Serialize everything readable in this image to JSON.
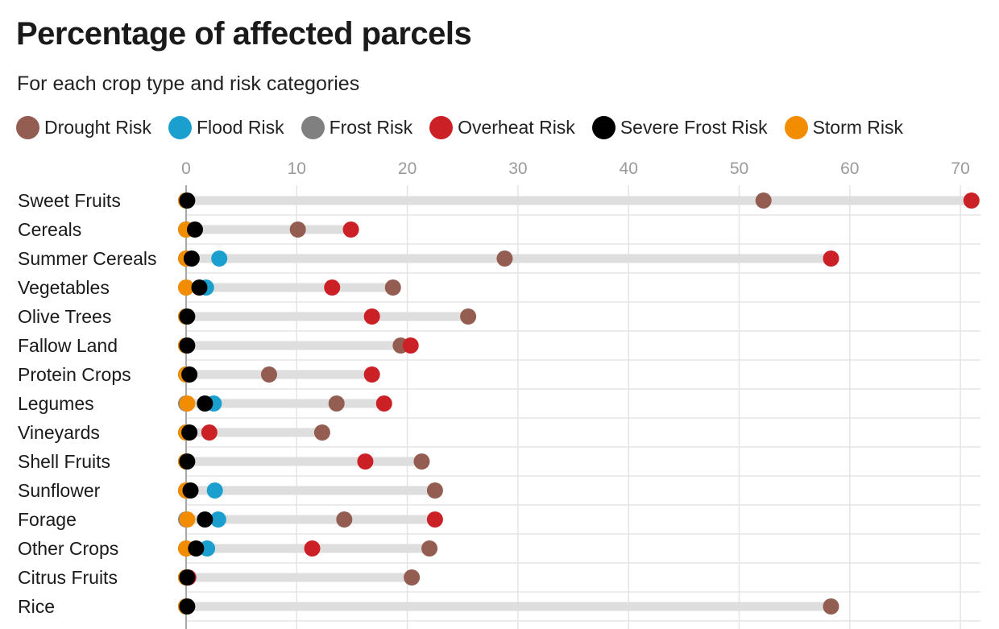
{
  "chart_data": {
    "type": "scatter",
    "subtype": "dot-plot",
    "title": "Percentage of affected parcels",
    "subtitle": "For each crop type and risk categories",
    "xlim": [
      0,
      71
    ],
    "x_ticks": [
      0,
      10,
      20,
      30,
      40,
      50,
      60,
      70
    ],
    "legend_position": "top",
    "grid": true,
    "categories": [
      "Sweet Fruits",
      "Cereals",
      "Summer Cereals",
      "Vegetables",
      "Olive Trees",
      "Fallow Land",
      "Protein Crops",
      "Legumes",
      "Vineyards",
      "Shell Fruits",
      "Sunflower",
      "Forage",
      "Other Crops",
      "Citrus Fruits",
      "Rice"
    ],
    "series": [
      {
        "name": "Drought Risk",
        "color": "#935d52",
        "values": [
          52.2,
          10.1,
          28.8,
          18.7,
          25.5,
          19.4,
          7.5,
          13.6,
          12.3,
          21.3,
          22.5,
          14.3,
          22.0,
          20.4,
          58.3
        ]
      },
      {
        "name": "Flood Risk",
        "color": "#1b9fcf",
        "values": [
          0.0,
          0.0,
          3.0,
          1.8,
          0.0,
          0.0,
          0.0,
          2.5,
          0.0,
          0.0,
          2.6,
          2.9,
          1.9,
          0.0,
          0.0
        ]
      },
      {
        "name": "Frost Risk",
        "color": "#808080",
        "values": [
          0.0,
          0.0,
          0.0,
          0.0,
          0.0,
          0.0,
          0.0,
          0.0,
          0.0,
          0.0,
          0.0,
          0.0,
          0.0,
          0.0,
          0.0
        ]
      },
      {
        "name": "Overheat Risk",
        "color": "#cc2027",
        "values": [
          71.0,
          14.9,
          58.3,
          13.2,
          16.8,
          20.3,
          16.8,
          17.9,
          2.1,
          16.2,
          0.0,
          22.5,
          11.4,
          0.2,
          0.0
        ]
      },
      {
        "name": "Severe Frost Risk",
        "color": "#000000",
        "values": [
          0.1,
          0.8,
          0.5,
          1.2,
          0.1,
          0.1,
          0.3,
          1.7,
          0.3,
          0.1,
          0.4,
          1.7,
          0.9,
          0.1,
          0.1
        ]
      },
      {
        "name": "Storm Risk",
        "color": "#f28c00",
        "values": [
          0.0,
          0.0,
          0.0,
          0.0,
          0.0,
          0.0,
          0.0,
          0.1,
          0.0,
          0.0,
          0.0,
          0.1,
          0.0,
          0.0,
          0.0
        ]
      }
    ]
  }
}
